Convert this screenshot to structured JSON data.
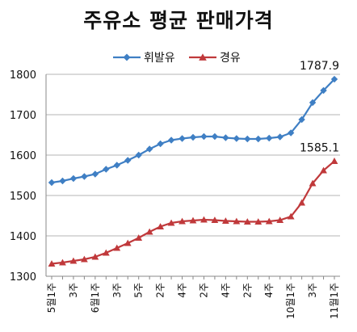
{
  "chart_data": {
    "type": "line",
    "title": "주유소 평균 판매가격",
    "xlabel": "",
    "ylabel": "",
    "ylim": [
      1300,
      1800
    ],
    "yticks": [
      1300,
      1400,
      1500,
      1600,
      1700,
      1800
    ],
    "grid": true,
    "legend_position": "top-center",
    "categories": [
      "5월1주",
      "",
      "3주",
      "",
      "6월1주",
      "",
      "3주",
      "",
      "5주",
      "",
      "2주",
      "",
      "4주",
      "",
      "2주",
      "",
      "4주",
      "",
      "2주",
      "",
      "4주",
      "",
      "10월1주",
      "",
      "3주",
      "",
      "11월1주"
    ],
    "series": [
      {
        "name": "휘발유",
        "color": "#3f7fc4",
        "marker": "diamond",
        "values": [
          1532,
          1536,
          1542,
          1547,
          1553,
          1565,
          1575,
          1587,
          1600,
          1615,
          1628,
          1637,
          1641,
          1644,
          1646,
          1646,
          1643,
          1641,
          1640,
          1640,
          1642,
          1645,
          1655,
          1688,
          1730,
          1760,
          1787.9
        ],
        "end_label": "1787.9"
      },
      {
        "name": "경유",
        "color": "#c0393b",
        "marker": "triangle",
        "values": [
          1331,
          1334,
          1338,
          1342,
          1348,
          1358,
          1370,
          1382,
          1395,
          1410,
          1423,
          1432,
          1436,
          1438,
          1440,
          1439,
          1437,
          1436,
          1435,
          1435,
          1436,
          1439,
          1448,
          1482,
          1530,
          1562,
          1585.1
        ],
        "end_label": "1585.1"
      }
    ]
  }
}
